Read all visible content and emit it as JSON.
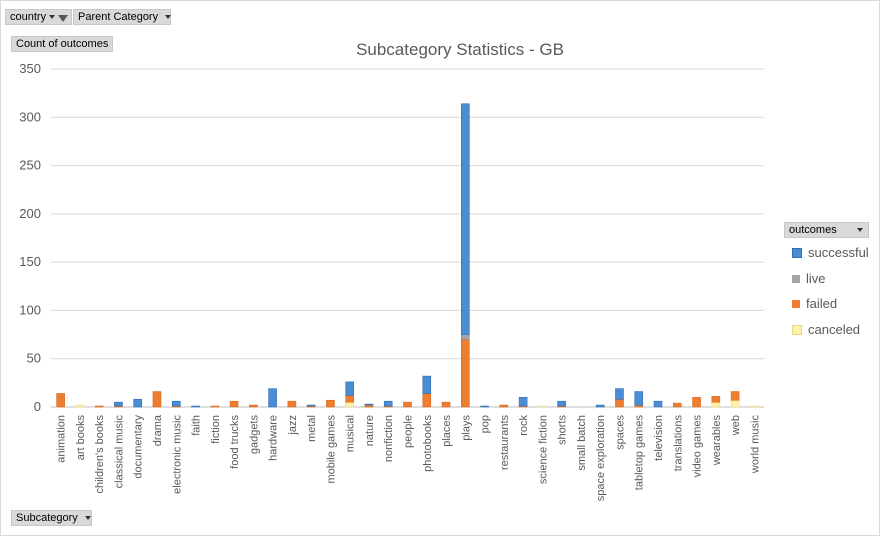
{
  "filters": {
    "country_label": "country",
    "parent_category_label": "Parent Category",
    "values_label": "Count of outcomes",
    "axis_field_label": "Subcategory",
    "legend_field_label": "outcomes"
  },
  "colors": {
    "successful": "#4a8dd4",
    "live": "#a5a5a5",
    "failed": "#ed7d31",
    "canceled": "#fff2a6",
    "gridline": "#d9d9d9",
    "axis_text": "#595959"
  },
  "chart_data": {
    "type": "bar",
    "stacked": true,
    "title": "Subcategory Statistics - GB",
    "xlabel": "",
    "ylabel": "",
    "ylim": [
      0,
      350
    ],
    "yticks": [
      0,
      50,
      100,
      150,
      200,
      250,
      300,
      350
    ],
    "grid": true,
    "legend_position": "right",
    "categories": [
      "animation",
      "art books",
      "children's books",
      "classical music",
      "documentary",
      "drama",
      "electronic music",
      "faith",
      "fiction",
      "food trucks",
      "gadgets",
      "hardware",
      "jazz",
      "metal",
      "mobile games",
      "musical",
      "nature",
      "nonfiction",
      "people",
      "photobooks",
      "places",
      "plays",
      "pop",
      "restaurants",
      "rock",
      "science fiction",
      "shorts",
      "small batch",
      "space exploration",
      "spaces",
      "tabletop games",
      "television",
      "translations",
      "video games",
      "wearables",
      "web",
      "world music"
    ],
    "series": [
      {
        "name": "canceled",
        "values": [
          0,
          2,
          0,
          0,
          0,
          0,
          0,
          0,
          0,
          0,
          0,
          0,
          0,
          0,
          0,
          5,
          0,
          0,
          0,
          0,
          0,
          0,
          0,
          0,
          0,
          1,
          0,
          0,
          0,
          0,
          0,
          0,
          0,
          0,
          5,
          7,
          1
        ]
      },
      {
        "name": "failed",
        "values": [
          14,
          0,
          1,
          1,
          0,
          16,
          1,
          0,
          1,
          6,
          2,
          0,
          6,
          1,
          7,
          7,
          2,
          1,
          5,
          14,
          5,
          70,
          0,
          2,
          1,
          0,
          1,
          0,
          0,
          8,
          2,
          0,
          4,
          10,
          6,
          9,
          0
        ]
      },
      {
        "name": "live",
        "values": [
          0,
          0,
          0,
          0,
          0,
          0,
          0,
          0,
          0,
          0,
          0,
          0,
          0,
          0,
          0,
          0,
          0,
          0,
          0,
          0,
          0,
          5,
          0,
          0,
          0,
          0,
          0,
          0,
          0,
          0,
          0,
          0,
          0,
          0,
          0,
          0,
          0
        ]
      },
      {
        "name": "successful",
        "values": [
          0,
          0,
          0,
          4,
          8,
          0,
          5,
          1,
          0,
          0,
          0,
          19,
          0,
          1,
          0,
          14,
          1,
          5,
          0,
          18,
          0,
          239,
          1,
          0,
          9,
          0,
          5,
          0,
          2,
          11,
          14,
          6,
          0,
          0,
          0,
          0,
          0
        ]
      }
    ]
  }
}
